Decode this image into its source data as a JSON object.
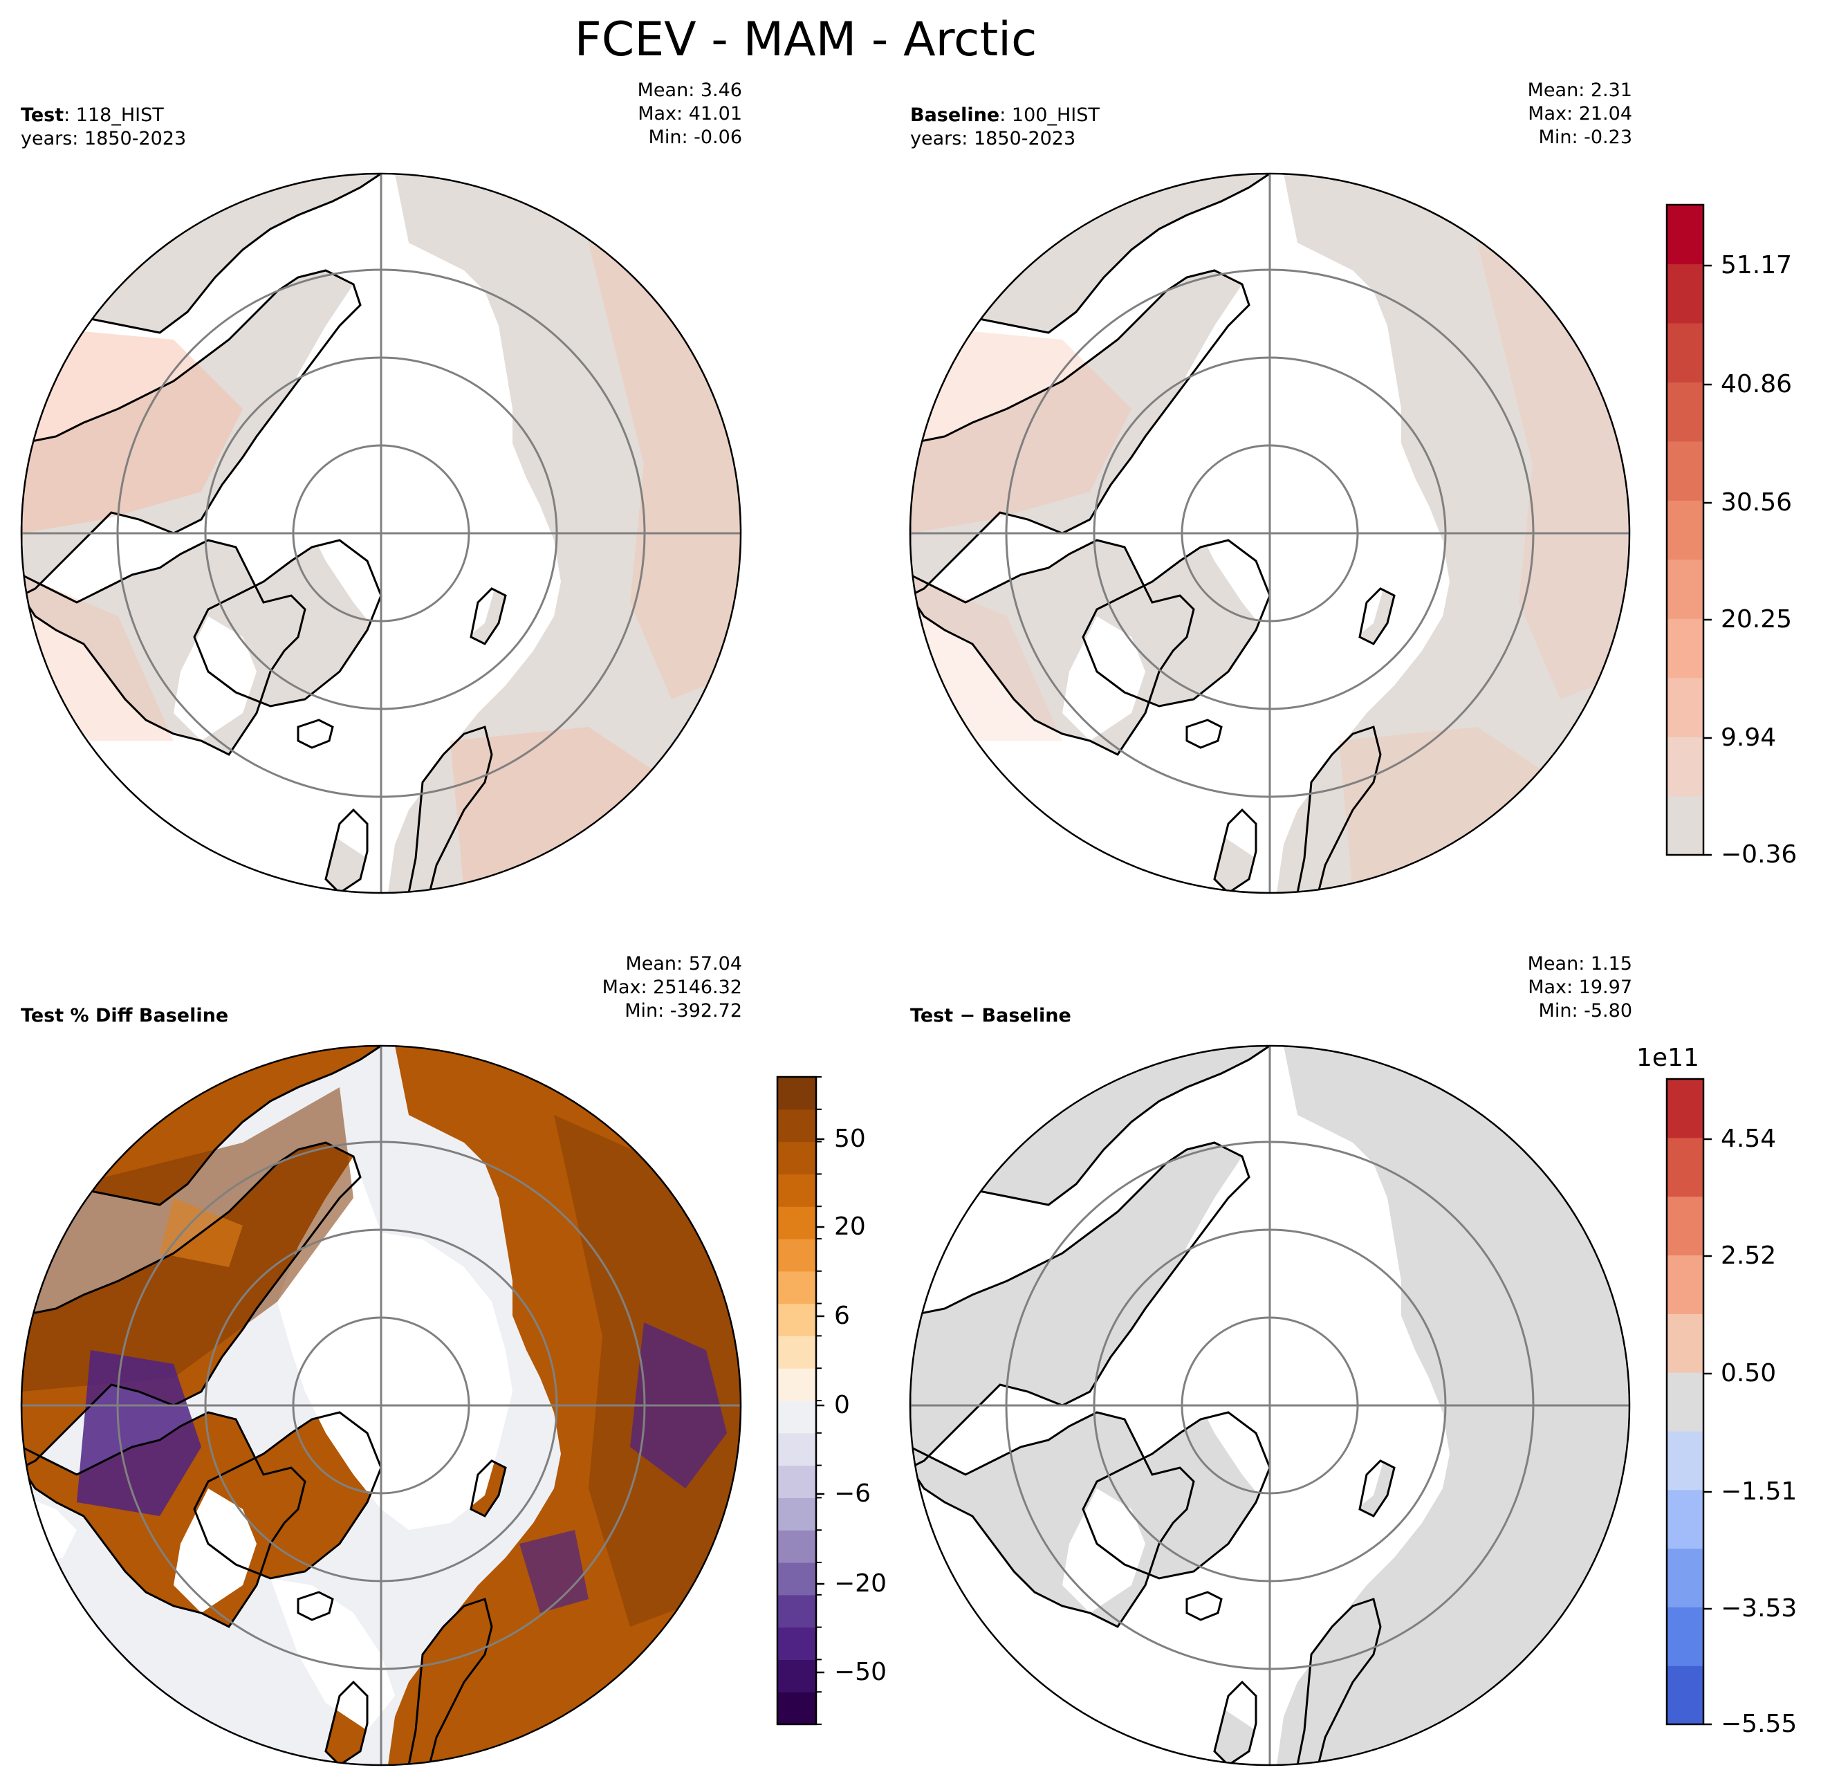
{
  "title": "FCEV - MAM - Arctic",
  "panels": {
    "test": {
      "label_bold": "Test",
      "label_rest": ": 118_HIST",
      "years": "years: 1850-2023",
      "stats": [
        "Mean:  3.46",
        "Max: 41.01",
        "Min: -0.06"
      ]
    },
    "baseline": {
      "label_bold": "Baseline",
      "label_rest": ": 100_HIST",
      "years": "years: 1850-2023",
      "stats": [
        "Mean:  2.31",
        "Max: 21.04",
        "Min: -0.23"
      ]
    },
    "pctdiff": {
      "label_bold": "Test % Diff Baseline",
      "stats": [
        "Mean: 57.04",
        "Max: 25146.32",
        "Min: -392.72"
      ]
    },
    "diff": {
      "label_bold": "Test − Baseline",
      "stats": [
        "Mean:  1.15",
        "Max: 19.97",
        "Min: -5.80"
      ]
    }
  },
  "colorbars": {
    "main": {
      "ticks": [
        "51.17",
        "40.86",
        "30.56",
        "20.25",
        "9.94",
        "−0.36"
      ],
      "colors": [
        "#e2dcd8",
        "#f1d2c6",
        "#f4c2ae",
        "#f6b196",
        "#f29e80",
        "#ec8a6c",
        "#e2745a",
        "#d75f4a",
        "#cb463b",
        "#be2c30",
        "#b40426"
      ]
    },
    "pct": {
      "ticks": [
        "50",
        "20",
        "6",
        "0",
        "−6",
        "−20",
        "−50"
      ],
      "colors": [
        "#2d004b",
        "#3c0f67",
        "#4f2384",
        "#5f3d94",
        "#7a64a9",
        "#9586bc",
        "#b2abd2",
        "#cbc7e2",
        "#e1e0ee",
        "#eef0f4",
        "#fdf0e0",
        "#fee0b6",
        "#fdcb8a",
        "#f9b05e",
        "#ef9639",
        "#e07f17",
        "#c9680b",
        "#b35806",
        "#9a4a06",
        "#7f3b08"
      ]
    },
    "diff": {
      "scale": "1e11",
      "ticks": [
        "4.54",
        "2.52",
        "0.50",
        "−1.51",
        "−3.53",
        "−5.55"
      ],
      "colors": [
        "#4161d4",
        "#5b82e8",
        "#7c9ff2",
        "#a1bcf8",
        "#c3d4f7",
        "#dcdcdc",
        "#f3c6b0",
        "#f4a487",
        "#ea8266",
        "#d65744",
        "#c02d2f"
      ]
    }
  },
  "map_colors": {
    "land_neutral": "#e3ddd9",
    "land_diff": "#dcdcdc",
    "pct_background": "#eef0f4",
    "warm_tint": "#f6b9a0",
    "pct_brown": "#b35806",
    "pct_dark_brown": "#7f3b08",
    "pct_orange": "#e0801a",
    "pct_purple": "#4f2384",
    "grid_line": "#808080"
  }
}
